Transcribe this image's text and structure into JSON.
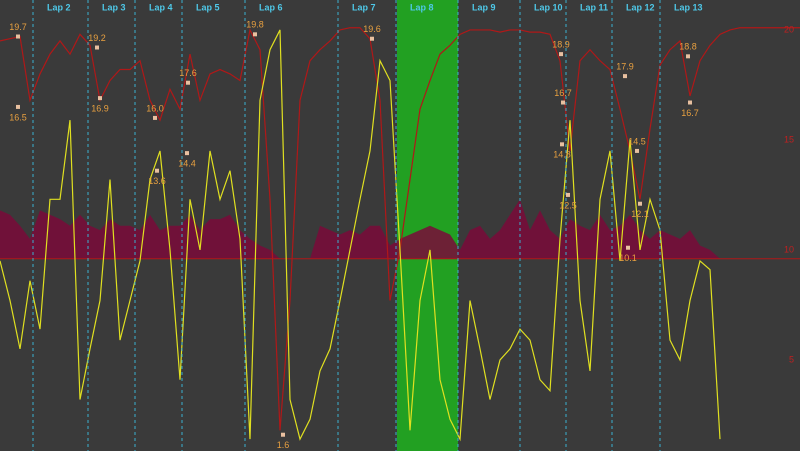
{
  "chart_data": {
    "type": "line",
    "background": "#3a3a3a",
    "xlim": [
      0,
      80
    ],
    "ylim": [
      0.86,
      21.36
    ],
    "yticks": [
      5,
      10,
      15,
      20
    ],
    "tick_color": "#c02020",
    "highlight": {
      "from": 39.7,
      "to": 45.8,
      "color": "#22a022"
    },
    "lap_color": "#3ab0d0",
    "laps": [
      {
        "label": "Lap 2",
        "x": 3.3
      },
      {
        "label": "Lap 3",
        "x": 8.8
      },
      {
        "label": "Lap 4",
        "x": 13.5
      },
      {
        "label": "Lap 5",
        "x": 18.2
      },
      {
        "label": "Lap 6",
        "x": 24.5
      },
      {
        "label": "Lap 7",
        "x": 33.8
      },
      {
        "label": "Lap 8",
        "x": 39.6
      },
      {
        "label": "Lap 9",
        "x": 45.8
      },
      {
        "label": "Lap 10",
        "x": 52.0
      },
      {
        "label": "Lap 11",
        "x": 56.6
      },
      {
        "label": "Lap 12",
        "x": 61.2
      },
      {
        "label": "Lap 13",
        "x": 66.0
      }
    ],
    "series": [
      {
        "kind": "area",
        "color": "#7a0a3a",
        "base": 9.6,
        "values": [
          11.8,
          11.6,
          11.1,
          10.5,
          11.8,
          11.6,
          11.4,
          11.1,
          11.6,
          11.1,
          10.9,
          11.4,
          11.1,
          11.1,
          10.9,
          11.6,
          10.9,
          11.1,
          11.1,
          11.6,
          10.9,
          11.4,
          11.4,
          11.6,
          10.9,
          10.5,
          10.2,
          10.0,
          9.6,
          9.6,
          9.6,
          9.6,
          11.1,
          10.9,
          10.7,
          10.9,
          10.7,
          11.1,
          11.1,
          10.2,
          10.5,
          10.7,
          10.9,
          11.1,
          10.9,
          10.7,
          10.0,
          10.9,
          11.1,
          10.5,
          10.9,
          11.6,
          12.3,
          10.9,
          11.8,
          10.9,
          10.5,
          11.4,
          11.1,
          10.9,
          11.6,
          10.9,
          11.1,
          11.6,
          10.9,
          10.5,
          10.9,
          10.7,
          10.5,
          10.9,
          10.2,
          10.0,
          9.6,
          9.6,
          9.6,
          9.6,
          9.6,
          9.6,
          9.6,
          9.6,
          9.6
        ]
      },
      {
        "kind": "line",
        "color": "#b01818",
        "values": [
          19.5,
          19.6,
          19.7,
          16.8,
          18.0,
          18.9,
          19.5,
          18.9,
          19.8,
          19.3,
          16.8,
          17.7,
          18.2,
          18.2,
          18.6,
          16.8,
          15.9,
          17.3,
          16.4,
          18.9,
          16.8,
          18.0,
          18.2,
          18.0,
          17.7,
          20.0,
          19.1,
          12.3,
          1.8,
          7.7,
          16.8,
          18.6,
          19.1,
          19.5,
          20.0,
          20.1,
          20.1,
          19.6,
          16.8,
          7.7,
          10.0,
          13.2,
          16.4,
          17.7,
          18.9,
          19.3,
          19.8,
          20.0,
          20.0,
          20.0,
          19.9,
          20.0,
          20.0,
          19.9,
          19.9,
          19.8,
          18.6,
          14.5,
          18.6,
          19.1,
          18.6,
          18.2,
          16.4,
          14.5,
          12.3,
          15.5,
          18.4,
          19.1,
          19.5,
          17.0,
          18.6,
          19.3,
          19.8,
          20.0,
          20.1,
          20.1,
          20.1,
          20.1,
          20.1,
          20.1,
          20.1
        ]
      },
      {
        "kind": "line",
        "color": "#e0e020",
        "values": [
          9.5,
          7.7,
          5.5,
          8.6,
          6.4,
          12.3,
          12.3,
          15.9,
          3.2,
          5.5,
          7.7,
          13.2,
          5.9,
          7.7,
          9.5,
          13.2,
          14.5,
          10.0,
          4.1,
          12.3,
          10.0,
          14.5,
          12.3,
          13.6,
          10.5,
          1.4,
          16.8,
          19.1,
          20.0,
          3.2,
          1.4,
          2.3,
          4.5,
          5.5,
          7.7,
          10.0,
          12.3,
          14.5,
          18.6,
          17.7,
          10.0,
          1.8,
          7.7,
          10.0,
          4.1,
          2.3,
          1.4,
          7.7,
          5.5,
          3.2,
          5.0,
          5.5,
          6.4,
          5.9,
          4.1,
          3.6,
          10.5,
          15.9,
          7.7,
          4.5,
          12.3,
          14.5,
          9.5,
          15.0,
          10.0,
          12.3,
          10.9,
          5.9,
          5.0,
          7.7,
          9.5,
          9.1,
          1.4,
          null,
          null,
          null,
          null,
          null,
          null,
          null,
          null
        ]
      }
    ],
    "annotation_color": "#e8a040",
    "annotations": [
      {
        "x": 1.8,
        "value": 19.7,
        "label": "19.7",
        "label_side": "above"
      },
      {
        "x": 1.8,
        "value": 16.5,
        "label": "16.5",
        "label_side": "below"
      },
      {
        "x": 9.7,
        "value": 19.2,
        "label": "19.2",
        "label_side": "above"
      },
      {
        "x": 10.0,
        "value": 16.9,
        "label": "16.9",
        "label_side": "below"
      },
      {
        "x": 15.5,
        "value": 16.0,
        "label": "16.0",
        "label_side": "above"
      },
      {
        "x": 15.7,
        "value": 13.6,
        "label": "13.6",
        "label_side": "below"
      },
      {
        "x": 18.8,
        "value": 17.6,
        "label": "17.6",
        "label_side": "above"
      },
      {
        "x": 18.7,
        "value": 14.4,
        "label": "14.4",
        "label_side": "below"
      },
      {
        "x": 25.5,
        "value": 19.8,
        "label": "19.8",
        "label_side": "above"
      },
      {
        "x": 28.3,
        "value": 1.6,
        "label": "1.6",
        "label_side": "below"
      },
      {
        "x": 37.2,
        "value": 19.6,
        "label": "19.6",
        "label_side": "above"
      },
      {
        "x": 56.1,
        "value": 18.9,
        "label": "18.9",
        "label_side": "above"
      },
      {
        "x": 56.3,
        "value": 16.7,
        "label": "16.7",
        "label_side": "above"
      },
      {
        "x": 56.2,
        "value": 14.8,
        "label": "14.8",
        "label_side": "below"
      },
      {
        "x": 56.8,
        "value": 12.5,
        "label": "12.5",
        "label_side": "below"
      },
      {
        "x": 62.5,
        "value": 17.9,
        "label": "17.9",
        "label_side": "above"
      },
      {
        "x": 63.7,
        "value": 14.5,
        "label": "14.5",
        "label_side": "above"
      },
      {
        "x": 64.0,
        "value": 12.1,
        "label": "12.1",
        "label_side": "below"
      },
      {
        "x": 62.8,
        "value": 10.1,
        "label": "10.1",
        "label_side": "below"
      },
      {
        "x": 68.8,
        "value": 18.8,
        "label": "18.8",
        "label_side": "above"
      },
      {
        "x": 69.0,
        "value": 16.7,
        "label": "16.7",
        "label_side": "below"
      }
    ]
  }
}
